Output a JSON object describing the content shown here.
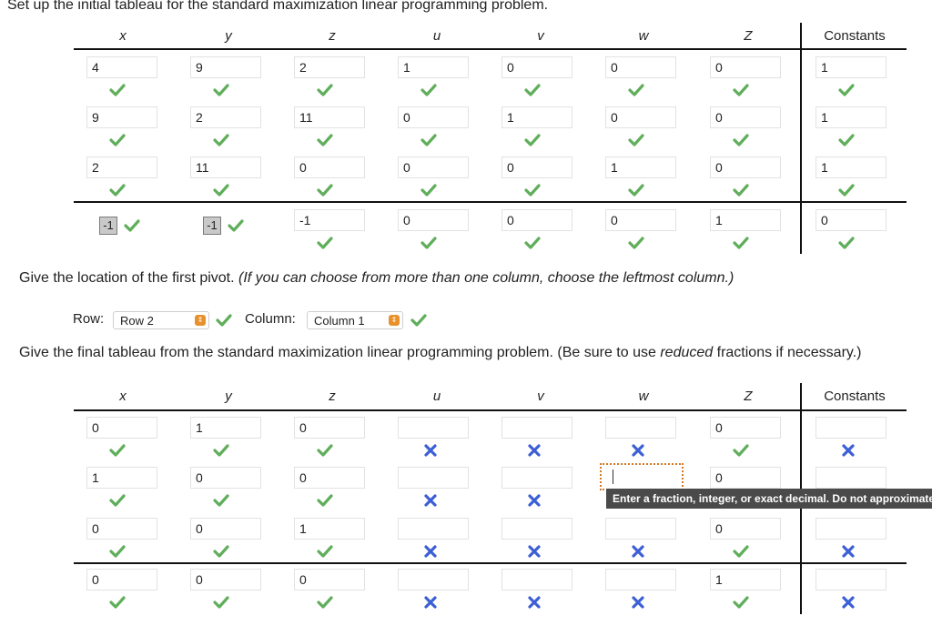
{
  "question1": "Set up the initial tableau for the standard maximization linear programming problem.",
  "headers": [
    "x",
    "y",
    "z",
    "u",
    "v",
    "w",
    "Z",
    "Constants"
  ],
  "initial_rows": [
    [
      "4",
      "9",
      "2",
      "1",
      "0",
      "0",
      "0",
      "1"
    ],
    [
      "9",
      "2",
      "11",
      "0",
      "1",
      "0",
      "0",
      "1"
    ],
    [
      "2",
      "11",
      "0",
      "0",
      "0",
      "1",
      "0",
      "1"
    ],
    [
      "-1",
      "-1",
      "-1",
      "0",
      "0",
      "0",
      "1",
      "0"
    ]
  ],
  "initial_marks": [
    [
      "check",
      "check",
      "check",
      "check",
      "check",
      "check",
      "check",
      "check"
    ],
    [
      "check",
      "check",
      "check",
      "check",
      "check",
      "check",
      "check",
      "check"
    ],
    [
      "check",
      "check",
      "check",
      "check",
      "check",
      "check",
      "check",
      "check"
    ],
    [
      "check",
      "check",
      "check",
      "check",
      "check",
      "check",
      "check",
      "check"
    ]
  ],
  "question2_prefix": "Give the location of the first pivot.",
  "question2_hint": "(If you can choose from more than one column, choose the leftmost column.)",
  "row_label": "Row:",
  "row_value": "Row 2",
  "column_label": "Column:",
  "column_value": "Column 1",
  "question3_a": "Give the final tableau from the standard maximization linear programming problem. (Be sure to use",
  "question3_em": "reduced",
  "question3_b": "fractions if necessary.)",
  "final_rows": [
    [
      "0",
      "1",
      "0",
      "",
      "",
      "",
      "0",
      ""
    ],
    [
      "1",
      "0",
      "0",
      "",
      "",
      "",
      "0",
      ""
    ],
    [
      "0",
      "0",
      "1",
      "",
      "",
      "",
      "0",
      ""
    ],
    [
      "0",
      "0",
      "0",
      "",
      "",
      "",
      "1",
      ""
    ]
  ],
  "final_marks": [
    [
      "check",
      "check",
      "check",
      "cross",
      "cross",
      "cross",
      "check",
      "cross"
    ],
    [
      "check",
      "check",
      "check",
      "cross",
      "cross",
      "",
      "check",
      ""
    ],
    [
      "check",
      "check",
      "check",
      "cross",
      "cross",
      "cross",
      "check",
      "cross"
    ],
    [
      "check",
      "check",
      "check",
      "cross",
      "cross",
      "cross",
      "check",
      "cross"
    ]
  ],
  "tooltip": "Enter a fraction, integer, or exact decimal. Do not approximate.",
  "colors": {
    "check": "#5fae5a",
    "cross": "#3d5fd6",
    "active_border": "#d27a25",
    "select_arrow": "#e8912c"
  }
}
